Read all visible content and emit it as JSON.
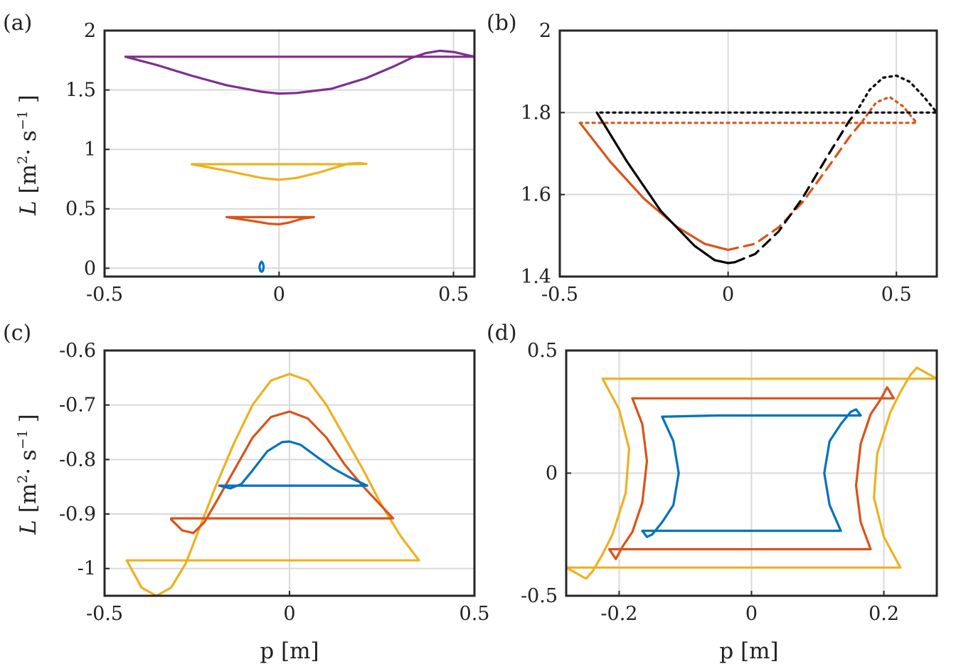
{
  "chart_data": [
    {
      "type": "line",
      "panel_label": "(a)",
      "xlim": [
        -0.5,
        0.56
      ],
      "ylim": [
        -0.07,
        2
      ],
      "xticks": [
        -0.5,
        0,
        0.5
      ],
      "xtick_labels": [
        "-0.5",
        "0",
        "0.5"
      ],
      "yticks": [
        0,
        0.5,
        1,
        1.5,
        2
      ],
      "ytick_labels": [
        "0",
        "0.5",
        "1",
        "1.5",
        "2"
      ],
      "grid": true,
      "xlabel": "",
      "ylabel": "L [m2· s−1 ]",
      "ylabel_parts": {
        "symbol": "L",
        "open": "[m",
        "sup1": "2",
        "mid": "· s",
        "sup2": "−1",
        "close": "]"
      },
      "series": [
        {
          "name": "purple",
          "color": "#7e2f8e",
          "style": "solid",
          "x": [
            -0.44,
            -0.35,
            -0.25,
            -0.15,
            -0.05,
            0,
            0.05,
            0.15,
            0.25,
            0.33,
            0.38,
            0.42,
            0.46,
            0.5,
            0.53,
            0.56,
            0.52,
            0.4,
            0.2,
            0,
            -0.2,
            -0.44
          ],
          "y": [
            1.78,
            1.71,
            1.62,
            1.54,
            1.485,
            1.47,
            1.475,
            1.51,
            1.6,
            1.7,
            1.77,
            1.81,
            1.83,
            1.82,
            1.8,
            1.78,
            1.78,
            1.78,
            1.78,
            1.78,
            1.78,
            1.78
          ]
        },
        {
          "name": "yellow",
          "color": "#edb120",
          "style": "solid",
          "x": [
            -0.25,
            -0.15,
            -0.05,
            0,
            0.05,
            0.12,
            0.17,
            0.2,
            0.23,
            0.25,
            0.2,
            0.1,
            0,
            -0.1,
            -0.25
          ],
          "y": [
            0.875,
            0.82,
            0.76,
            0.745,
            0.76,
            0.81,
            0.855,
            0.88,
            0.885,
            0.878,
            0.875,
            0.875,
            0.875,
            0.875,
            0.875
          ]
        },
        {
          "name": "orange",
          "color": "#d95319",
          "style": "solid",
          "x": [
            -0.15,
            -0.08,
            -0.03,
            0,
            0.03,
            0.07,
            0.1,
            0.05,
            0,
            -0.08,
            -0.15
          ],
          "y": [
            0.43,
            0.4,
            0.375,
            0.37,
            0.385,
            0.42,
            0.43,
            0.43,
            0.43,
            0.43,
            0.43
          ]
        },
        {
          "name": "blue",
          "color": "#0072bd",
          "style": "solid",
          "x": [
            -0.05,
            -0.046,
            -0.044,
            -0.046,
            -0.05,
            -0.054,
            -0.056,
            -0.054,
            -0.05
          ],
          "y": [
            -0.03,
            -0.02,
            0.01,
            0.04,
            0.055,
            0.04,
            0.01,
            -0.02,
            -0.03
          ]
        }
      ]
    },
    {
      "type": "line",
      "panel_label": "(b)",
      "xlim": [
        -0.5,
        0.62
      ],
      "ylim": [
        1.4,
        2.0
      ],
      "xticks": [
        -0.5,
        0,
        0.5
      ],
      "xtick_labels": [
        "-0.5",
        "0",
        "0.5"
      ],
      "yticks": [
        1.4,
        1.6,
        1.8,
        2.0
      ],
      "ytick_labels": [
        "1.4",
        "1.6",
        "1.8",
        "2"
      ],
      "grid": true,
      "xlabel": "",
      "ylabel": "",
      "series": [
        {
          "name": "orange-solid",
          "color": "#d95319",
          "style": "solid",
          "x": [
            -0.44,
            -0.35,
            -0.25,
            -0.15,
            -0.07,
            0
          ],
          "y": [
            1.775,
            1.68,
            1.59,
            1.52,
            1.48,
            1.465
          ]
        },
        {
          "name": "orange-dashed",
          "color": "#d95319",
          "style": "dashed",
          "x": [
            0,
            0.08,
            0.15,
            0.22,
            0.3,
            0.36,
            0.4
          ],
          "y": [
            1.465,
            1.48,
            1.52,
            1.58,
            1.67,
            1.74,
            1.78
          ]
        },
        {
          "name": "orange-dotted",
          "color": "#d95319",
          "style": "dotted",
          "x": [
            0.4,
            0.44,
            0.48,
            0.52,
            0.56,
            0.5,
            0.3,
            0.1,
            -0.1,
            -0.3,
            -0.44
          ],
          "y": [
            1.78,
            1.825,
            1.838,
            1.815,
            1.775,
            1.775,
            1.775,
            1.775,
            1.775,
            1.775,
            1.775
          ]
        },
        {
          "name": "black-solid",
          "color": "#000000",
          "style": "solid",
          "x": [
            -0.39,
            -0.3,
            -0.2,
            -0.1,
            -0.04,
            0,
            0.02
          ],
          "y": [
            1.8,
            1.68,
            1.56,
            1.475,
            1.44,
            1.433,
            1.435
          ]
        },
        {
          "name": "black-dashed",
          "color": "#000000",
          "style": "dashed",
          "x": [
            0.02,
            0.08,
            0.15,
            0.22,
            0.3,
            0.36,
            0.38
          ],
          "y": [
            1.435,
            1.455,
            1.51,
            1.59,
            1.7,
            1.78,
            1.8
          ]
        },
        {
          "name": "black-dotted",
          "color": "#000000",
          "style": "dotted",
          "x": [
            0.38,
            0.42,
            0.46,
            0.5,
            0.54,
            0.58,
            0.62,
            0.5,
            0.3,
            0.1,
            -0.1,
            -0.3,
            -0.39
          ],
          "y": [
            1.8,
            1.855,
            1.885,
            1.89,
            1.875,
            1.84,
            1.8,
            1.8,
            1.8,
            1.8,
            1.8,
            1.8,
            1.8
          ]
        }
      ]
    },
    {
      "type": "line",
      "panel_label": "(c)",
      "xlim": [
        -0.5,
        0.5
      ],
      "ylim": [
        -1.05,
        -0.6
      ],
      "xticks": [
        -0.5,
        0,
        0.5
      ],
      "xtick_labels": [
        "-0.5",
        "0",
        "0.5"
      ],
      "yticks": [
        -1,
        -0.9,
        -0.8,
        -0.7,
        -0.6
      ],
      "ytick_labels": [
        "-1",
        "-0.9",
        "-0.8",
        "-0.7",
        "-0.6"
      ],
      "grid": true,
      "xlabel": "p [m]",
      "ylabel": "L [m2· s−1 ]",
      "ylabel_parts": {
        "symbol": "L",
        "open": "[m",
        "sup1": "2",
        "mid": "· s",
        "sup2": "−1",
        "close": "]"
      },
      "series": [
        {
          "name": "yellow",
          "color": "#edb120",
          "style": "solid",
          "x": [
            -0.44,
            -0.4,
            -0.36,
            -0.32,
            -0.28,
            -0.24,
            -0.2,
            -0.15,
            -0.1,
            -0.05,
            0,
            0.05,
            0.1,
            0.15,
            0.2,
            0.25,
            0.3,
            0.35,
            0.2,
            0,
            -0.2,
            -0.44
          ],
          "y": [
            -0.985,
            -1.035,
            -1.05,
            -1.035,
            -0.99,
            -0.92,
            -0.85,
            -0.77,
            -0.7,
            -0.655,
            -0.643,
            -0.655,
            -0.7,
            -0.76,
            -0.82,
            -0.885,
            -0.94,
            -0.985,
            -0.985,
            -0.985,
            -0.985,
            -0.985
          ]
        },
        {
          "name": "orange",
          "color": "#d95319",
          "style": "solid",
          "x": [
            -0.32,
            -0.29,
            -0.26,
            -0.23,
            -0.2,
            -0.15,
            -0.1,
            -0.05,
            0,
            0.05,
            0.1,
            0.15,
            0.2,
            0.28,
            0.1,
            -0.1,
            -0.32
          ],
          "y": [
            -0.91,
            -0.93,
            -0.935,
            -0.915,
            -0.88,
            -0.82,
            -0.76,
            -0.722,
            -0.712,
            -0.725,
            -0.76,
            -0.81,
            -0.85,
            -0.908,
            -0.908,
            -0.908,
            -0.908
          ]
        },
        {
          "name": "blue",
          "color": "#0072bd",
          "style": "solid",
          "x": [
            -0.19,
            -0.16,
            -0.13,
            -0.1,
            -0.06,
            -0.02,
            0,
            0.03,
            0.07,
            0.12,
            0.16,
            0.21,
            0.1,
            -0.05,
            -0.19
          ],
          "y": [
            -0.848,
            -0.853,
            -0.845,
            -0.82,
            -0.785,
            -0.768,
            -0.767,
            -0.773,
            -0.793,
            -0.817,
            -0.832,
            -0.848,
            -0.848,
            -0.848,
            -0.848
          ]
        }
      ]
    },
    {
      "type": "line",
      "panel_label": "(d)",
      "xlim": [
        -0.28,
        0.28
      ],
      "ylim": [
        -0.5,
        0.5
      ],
      "xticks": [
        -0.2,
        0,
        0.2
      ],
      "xtick_labels": [
        "-0.2",
        "0",
        "0.2"
      ],
      "yticks": [
        -0.5,
        0,
        0.5
      ],
      "ytick_labels": [
        "-0.5",
        "0",
        "0.5"
      ],
      "grid": true,
      "xlabel": "p [m]",
      "ylabel": "",
      "series": [
        {
          "name": "yellow",
          "color": "#edb120",
          "style": "solid",
          "x": [
            -0.225,
            -0.2,
            -0.185,
            -0.19,
            -0.21,
            -0.225,
            -0.24,
            -0.25,
            -0.27,
            -0.28,
            -0.1,
            0.1,
            0.225,
            0.2,
            0.185,
            0.19,
            0.21,
            0.225,
            0.24,
            0.25,
            0.27,
            0.28,
            0.1,
            -0.1,
            -0.225
          ],
          "y": [
            0.385,
            0.26,
            0.1,
            -0.08,
            -0.25,
            -0.33,
            -0.4,
            -0.43,
            -0.4,
            -0.385,
            -0.385,
            -0.385,
            -0.385,
            -0.26,
            -0.1,
            0.08,
            0.25,
            0.33,
            0.4,
            0.43,
            0.4,
            0.385,
            0.385,
            0.385,
            0.385
          ]
        },
        {
          "name": "orange",
          "color": "#d95319",
          "style": "solid",
          "x": [
            -0.18,
            -0.165,
            -0.158,
            -0.165,
            -0.18,
            -0.195,
            -0.205,
            -0.215,
            -0.1,
            0.05,
            0.18,
            0.165,
            0.158,
            0.165,
            0.18,
            0.195,
            0.205,
            0.215,
            0.1,
            -0.05,
            -0.18
          ],
          "y": [
            0.305,
            0.2,
            0.05,
            -0.12,
            -0.24,
            -0.3,
            -0.35,
            -0.31,
            -0.31,
            -0.31,
            -0.31,
            -0.2,
            -0.05,
            0.12,
            0.24,
            0.3,
            0.35,
            0.305,
            0.305,
            0.305,
            0.305
          ]
        },
        {
          "name": "blue",
          "color": "#0072bd",
          "style": "solid",
          "x": [
            -0.135,
            -0.118,
            -0.11,
            -0.118,
            -0.135,
            -0.15,
            -0.158,
            -0.165,
            -0.05,
            0.05,
            0.135,
            0.118,
            0.11,
            0.118,
            0.135,
            0.15,
            0.158,
            0.165,
            0.05,
            -0.05,
            -0.135
          ],
          "y": [
            0.23,
            0.13,
            0.0,
            -0.13,
            -0.2,
            -0.25,
            -0.26,
            -0.235,
            -0.235,
            -0.235,
            -0.235,
            -0.13,
            0.0,
            0.13,
            0.2,
            0.25,
            0.26,
            0.235,
            0.235,
            0.235,
            0.23
          ]
        }
      ]
    }
  ]
}
